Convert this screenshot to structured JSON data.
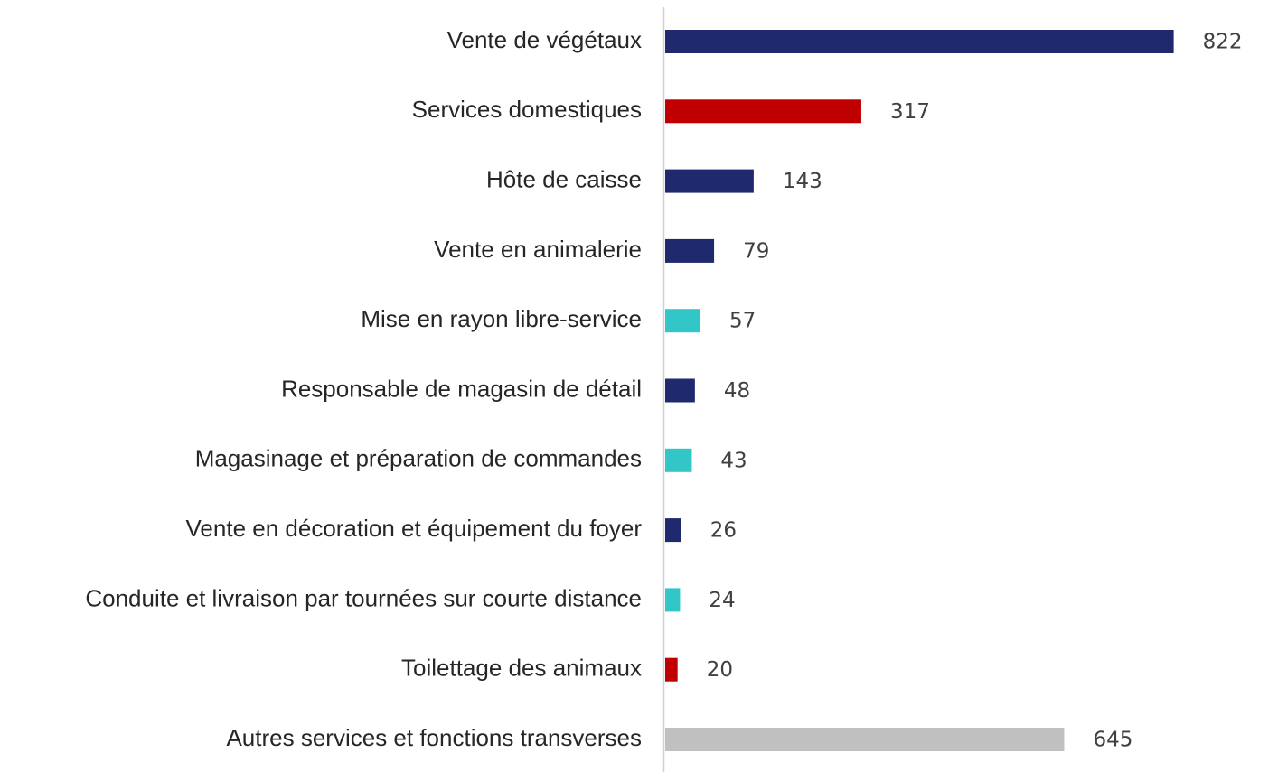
{
  "chart_data": {
    "type": "hbar",
    "categories": [
      "Vente de végétaux",
      "Services domestiques",
      "Hôte de caisse",
      "Vente en animalerie",
      "Mise en rayon libre-service",
      "Responsable de magasin de détail",
      "Magasinage et préparation de commandes",
      "Vente en décoration et équipement du foyer",
      "Conduite et livraison par tournées sur courte distance",
      "Toilettage des animaux",
      "Autres services et fonctions transverses"
    ],
    "values": [
      822,
      317,
      143,
      79,
      57,
      48,
      43,
      26,
      24,
      20,
      645
    ],
    "colors": [
      "#1f2a6e",
      "#c00000",
      "#1f2a6e",
      "#1f2a6e",
      "#33c6c6",
      "#1f2a6e",
      "#33c6c6",
      "#1f2a6e",
      "#33c6c6",
      "#c00000",
      "#c0c0c0"
    ],
    "xlim": [
      0,
      900
    ]
  }
}
